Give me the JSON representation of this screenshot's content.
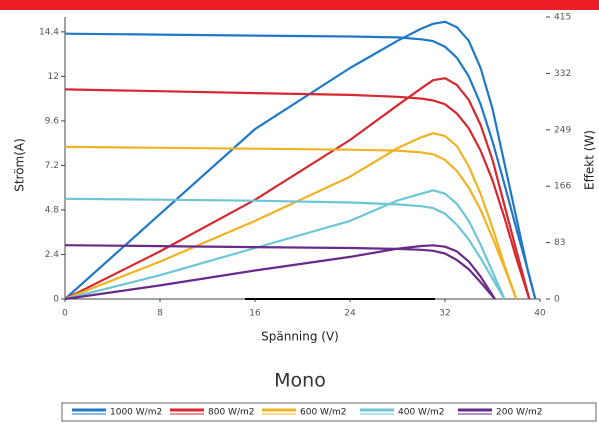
{
  "chart_data": {
    "type": "line",
    "title": "Mono",
    "xlabel": "Spänning (V)",
    "ylabel": "Ström(A)",
    "y2label": "Effekt (W)",
    "xlim": [
      0,
      40
    ],
    "xticks": [
      0,
      8,
      16,
      24,
      32,
      40
    ],
    "ylim": [
      0,
      15.2
    ],
    "yticks": [
      0,
      2.4,
      4.8,
      7.2,
      9.6,
      12,
      14.4
    ],
    "y2lim": [
      0,
      415
    ],
    "y2ticks": [
      0,
      83,
      166,
      249,
      332,
      415
    ],
    "series": [
      {
        "name": "1000 W/m2",
        "color": "#1f78c8",
        "x": [
          0,
          8,
          16,
          24,
          28,
          30,
          31,
          32,
          33,
          34,
          35,
          36,
          37,
          38,
          39,
          39.6
        ],
        "current": [
          14.3,
          14.25,
          14.2,
          14.15,
          14.1,
          14.0,
          13.9,
          13.6,
          13.0,
          12.0,
          10.5,
          8.5,
          6.2,
          3.8,
          1.5,
          0
        ],
        "power": [
          0,
          125,
          250,
          340,
          380,
          398,
          405,
          408,
          400,
          380,
          340,
          280,
          200,
          120,
          40,
          0
        ]
      },
      {
        "name": "800 W/m2",
        "color": "#d6282f",
        "x": [
          0,
          8,
          16,
          24,
          28,
          30,
          31,
          32,
          33,
          34,
          35,
          36,
          37,
          38,
          39.1
        ],
        "current": [
          11.3,
          11.2,
          11.1,
          11.0,
          10.9,
          10.8,
          10.7,
          10.5,
          10.0,
          9.2,
          8.0,
          6.4,
          4.4,
          2.2,
          0
        ],
        "power": [
          0,
          70,
          146,
          234,
          285,
          310,
          322,
          325,
          315,
          293,
          256,
          205,
          138,
          72,
          0
        ]
      },
      {
        "name": "600 W/m2",
        "color": "#f0b323",
        "x": [
          0,
          8,
          16,
          24,
          28,
          30,
          31,
          32,
          33,
          34,
          35,
          36,
          37,
          38
        ],
        "current": [
          8.2,
          8.15,
          8.1,
          8.05,
          8.0,
          7.9,
          7.8,
          7.5,
          6.9,
          6.0,
          4.8,
          3.3,
          1.7,
          0
        ],
        "power": [
          0,
          55,
          115,
          180,
          222,
          238,
          244,
          240,
          225,
          195,
          155,
          105,
          50,
          0
        ]
      },
      {
        "name": "400 W/m2",
        "color": "#6cc6d6",
        "x": [
          0,
          8,
          16,
          24,
          28,
          30,
          31,
          32,
          33,
          34,
          35,
          36,
          37
        ],
        "current": [
          5.4,
          5.35,
          5.3,
          5.2,
          5.1,
          5.0,
          4.9,
          4.6,
          4.0,
          3.2,
          2.2,
          1.1,
          0
        ],
        "power": [
          0,
          35,
          75,
          115,
          145,
          155,
          160,
          155,
          140,
          115,
          80,
          40,
          0
        ]
      },
      {
        "name": "200 W/m2",
        "color": "#6a2a8a",
        "x": [
          0,
          8,
          16,
          24,
          28,
          30,
          31,
          32,
          33,
          34,
          35,
          36.2
        ],
        "current": [
          2.9,
          2.85,
          2.8,
          2.75,
          2.7,
          2.65,
          2.6,
          2.45,
          2.1,
          1.6,
          0.9,
          0
        ],
        "power": [
          0,
          20,
          42,
          62,
          74,
          78,
          79,
          77,
          70,
          55,
          33,
          0
        ]
      }
    ]
  }
}
